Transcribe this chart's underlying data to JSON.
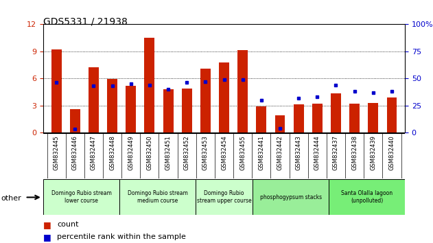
{
  "title": "GDS5331 / 21938",
  "samples": [
    "GSM832445",
    "GSM832446",
    "GSM832447",
    "GSM832448",
    "GSM832449",
    "GSM832450",
    "GSM832451",
    "GSM832452",
    "GSM832453",
    "GSM832454",
    "GSM832455",
    "GSM832441",
    "GSM832442",
    "GSM832443",
    "GSM832444",
    "GSM832437",
    "GSM832438",
    "GSM832439",
    "GSM832440"
  ],
  "counts": [
    9.2,
    2.6,
    7.2,
    5.9,
    5.2,
    10.5,
    4.8,
    4.9,
    7.1,
    7.8,
    9.1,
    2.9,
    1.9,
    3.1,
    3.2,
    4.3,
    3.2,
    3.3,
    3.9
  ],
  "percentile_ranks": [
    46,
    3,
    43,
    43,
    45,
    44,
    40,
    46,
    47,
    49,
    49,
    30,
    4,
    32,
    33,
    44,
    38,
    37,
    38
  ],
  "groups": [
    {
      "label": "Domingo Rubio stream\nlower course",
      "color": "#ccffcc",
      "start": 0,
      "end": 4
    },
    {
      "label": "Domingo Rubio stream\nmedium course",
      "color": "#ccffcc",
      "start": 4,
      "end": 8
    },
    {
      "label": "Domingo Rubio\nstream upper course",
      "color": "#ccffcc",
      "start": 8,
      "end": 11
    },
    {
      "label": "phosphogypsum stacks",
      "color": "#99ee99",
      "start": 11,
      "end": 15
    },
    {
      "label": "Santa Olalla lagoon\n(unpolluted)",
      "color": "#77ee77",
      "start": 15,
      "end": 19
    }
  ],
  "ylim_left": [
    0,
    12
  ],
  "ylim_right": [
    0,
    100
  ],
  "yticks_left": [
    0,
    3,
    6,
    9,
    12
  ],
  "yticks_right": [
    0,
    25,
    50,
    75,
    100
  ],
  "bar_color": "#cc2200",
  "dot_color": "#0000cc",
  "other_label": "other",
  "legend_count_label": "count",
  "legend_pct_label": "percentile rank within the sample",
  "left_ycolor": "#cc2200",
  "right_ycolor": "#0000cc",
  "tick_bg_color": "#d0d0d0",
  "figsize": [
    6.31,
    3.54
  ],
  "dpi": 100
}
